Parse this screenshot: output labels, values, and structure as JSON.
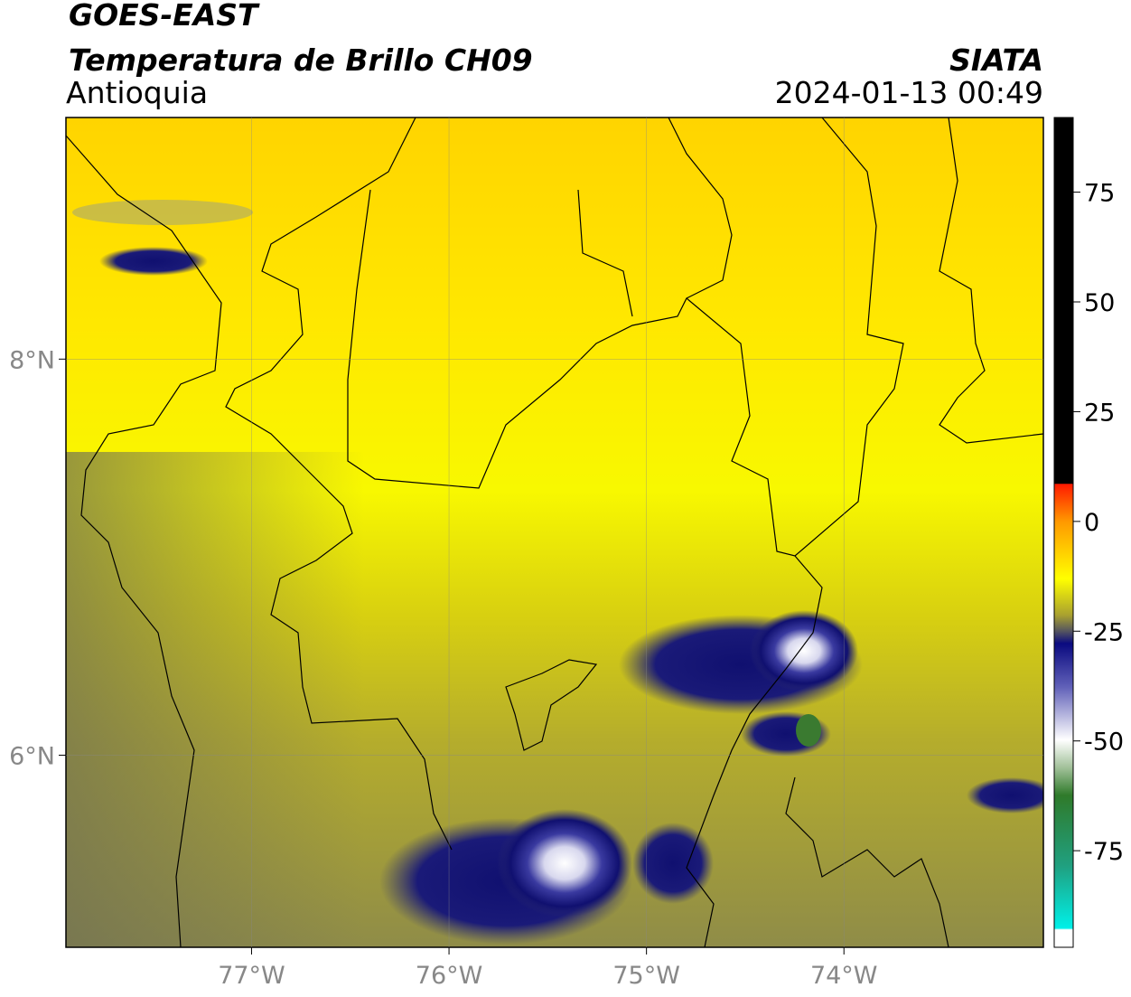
{
  "header": {
    "title": "GOES-EAST",
    "subtitle": "Temperatura de Brillo CH09",
    "region": "Antioquia",
    "source": "SIATA",
    "datetime": "2024-01-13 00:49"
  },
  "map": {
    "xlim": [
      -77.94,
      -72.99
    ],
    "ylim": [
      5.03,
      9.22
    ],
    "xticks": [
      {
        "value": -77,
        "label": "77°W"
      },
      {
        "value": -76,
        "label": "76°W"
      },
      {
        "value": -75,
        "label": "75°W"
      },
      {
        "value": -74,
        "label": "74°W"
      }
    ],
    "yticks": [
      {
        "value": 8,
        "label": "8°N"
      },
      {
        "value": 6,
        "label": "6°N"
      }
    ]
  },
  "colorbar": {
    "lim": [
      -97,
      92
    ],
    "ticks": [
      75,
      50,
      25,
      0,
      -25,
      -50,
      -75
    ]
  }
}
